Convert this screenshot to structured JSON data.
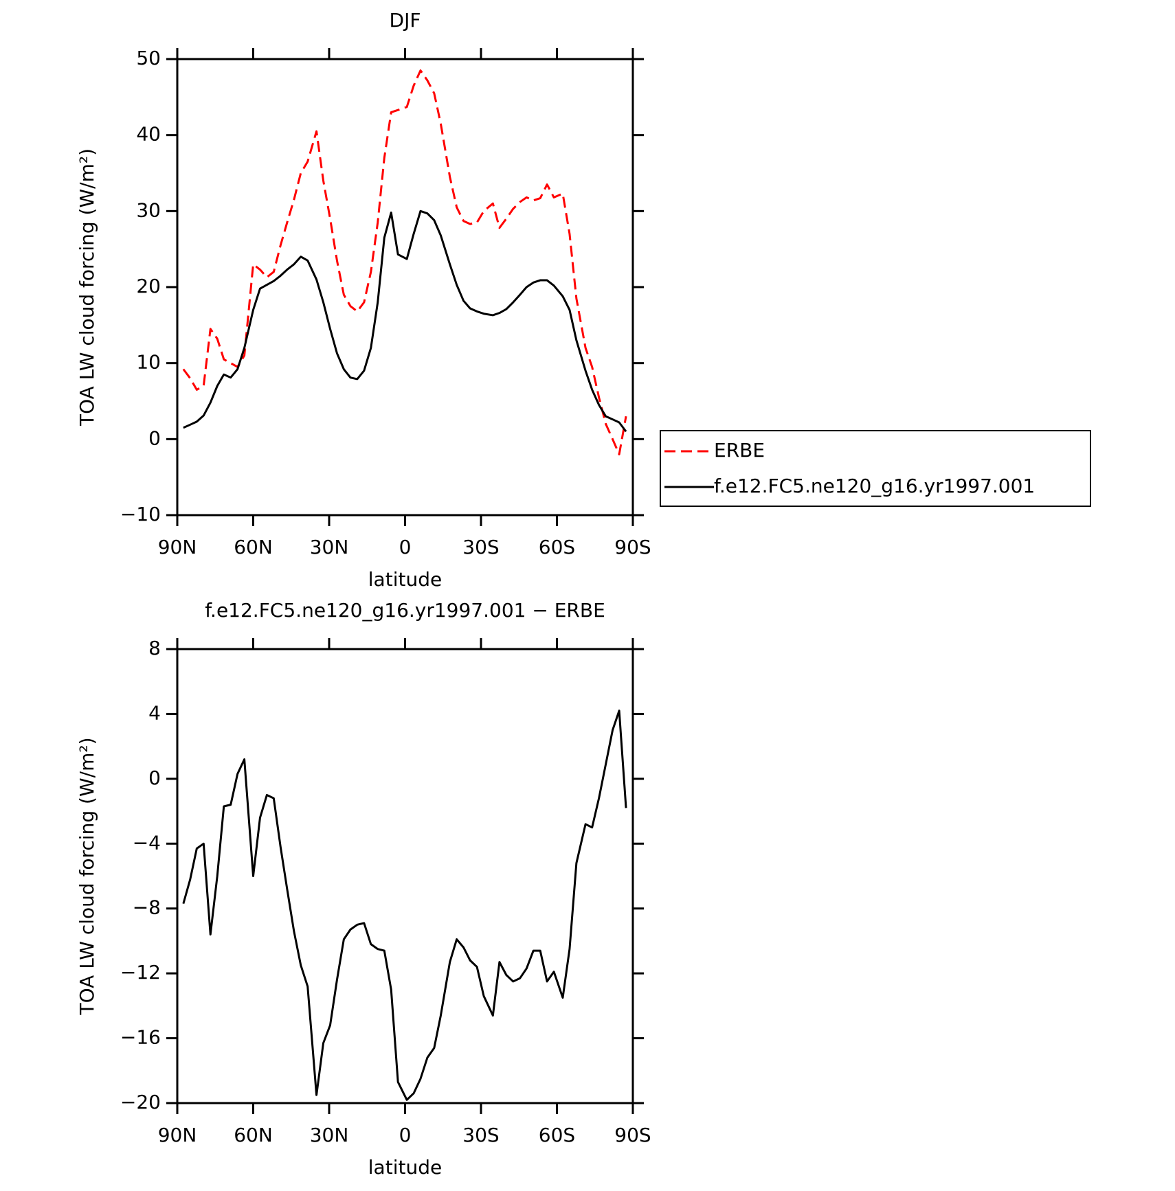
{
  "chart_data": [
    {
      "type": "line",
      "title": "DJF",
      "xlabel": "latitude",
      "ylabel": "TOA LW cloud forcing (W/m²)",
      "x": [
        87.6,
        84.9,
        82.3,
        79.6,
        76.9,
        74.2,
        71.6,
        68.9,
        66.2,
        63.5,
        60.0,
        57.3,
        54.6,
        51.9,
        49.2,
        46.6,
        43.9,
        41.2,
        38.5,
        35.0,
        32.3,
        29.6,
        26.9,
        24.2,
        21.6,
        18.9,
        16.2,
        13.5,
        10.8,
        8.2,
        5.5,
        2.8,
        -0.7,
        -3.4,
        -6.1,
        -8.8,
        -11.5,
        -14.1,
        -17.7,
        -20.4,
        -23.1,
        -25.7,
        -28.4,
        -31.1,
        -34.7,
        -37.3,
        -40.0,
        -42.7,
        -45.4,
        -48.0,
        -50.7,
        -53.4,
        -56.1,
        -58.8,
        -62.3,
        -65.0,
        -67.7,
        -71.3,
        -73.9,
        -76.6,
        -79.3,
        -82.0,
        -84.6,
        -87.3
      ],
      "series": [
        {
          "name": "ERBE",
          "color": "#ff0000",
          "line_style": "dashed",
          "values": [
            9.2,
            8.0,
            6.5,
            7.0,
            14.5,
            13.2,
            10.5,
            10.0,
            9.5,
            11.0,
            23.0,
            22.3,
            21.3,
            22.0,
            25.5,
            28.5,
            31.5,
            35.0,
            36.5,
            40.5,
            34.0,
            29.0,
            23.5,
            19.0,
            17.5,
            16.8,
            18.0,
            22.0,
            28.5,
            37.0,
            43.0,
            43.3,
            43.7,
            46.5,
            48.5,
            47.2,
            45.5,
            41.5,
            34.5,
            30.5,
            28.7,
            28.3,
            28.5,
            30.0,
            31.0,
            27.8,
            29.0,
            30.3,
            31.2,
            31.8,
            31.4,
            31.7,
            33.5,
            31.8,
            32.3,
            27.0,
            18.5,
            12.0,
            9.5,
            5.5,
            2.0,
            0.0,
            -2.0,
            3.0
          ]
        },
        {
          "name": "f.e12.FC5.ne120_g16.yr1997.001",
          "color": "#000000",
          "line_style": "solid",
          "values": [
            1.5,
            1.9,
            2.3,
            3.1,
            4.8,
            7.0,
            8.5,
            8.1,
            9.2,
            12.0,
            17.0,
            19.8,
            20.3,
            20.8,
            21.5,
            22.3,
            23.0,
            24.0,
            23.5,
            21.0,
            18.0,
            14.5,
            11.3,
            9.2,
            8.1,
            7.9,
            9.0,
            12.0,
            18.0,
            26.5,
            29.8,
            24.3,
            23.7,
            27.0,
            30.0,
            29.7,
            28.8,
            26.8,
            23.0,
            20.3,
            18.2,
            17.2,
            16.8,
            16.5,
            16.3,
            16.6,
            17.1,
            18.0,
            19.0,
            20.0,
            20.6,
            20.9,
            20.9,
            20.2,
            18.8,
            17.0,
            13.0,
            9.0,
            6.5,
            4.5,
            3.0,
            2.6,
            2.2,
            1.0
          ]
        }
      ],
      "xlim": [
        90,
        -90
      ],
      "xticks": [
        {
          "value": 90,
          "label": "90N"
        },
        {
          "value": 60,
          "label": "60N"
        },
        {
          "value": 30,
          "label": "30N"
        },
        0,
        {
          "value": -30,
          "label": "30S"
        },
        {
          "value": -60,
          "label": "60S"
        },
        {
          "value": -90,
          "label": "90S"
        }
      ],
      "ylim": [
        -10,
        50
      ],
      "yticks": [
        {
          "value": -10,
          "label": "−10"
        },
        0,
        10,
        20,
        30,
        40,
        50
      ],
      "legend": "right"
    },
    {
      "type": "line",
      "title": "f.e12.FC5.ne120_g16.yr1997.001 − ERBE",
      "xlabel": "latitude",
      "ylabel": "TOA LW cloud forcing (W/m²)",
      "x": [
        87.6,
        84.9,
        82.3,
        79.6,
        76.9,
        74.2,
        71.6,
        68.9,
        66.2,
        63.5,
        60.0,
        57.3,
        54.6,
        51.9,
        49.2,
        46.6,
        43.9,
        41.2,
        38.5,
        35.0,
        32.3,
        29.6,
        26.9,
        24.2,
        21.6,
        18.9,
        16.2,
        13.5,
        10.8,
        8.2,
        5.5,
        2.8,
        -0.7,
        -3.4,
        -6.1,
        -8.8,
        -11.5,
        -14.1,
        -17.7,
        -20.4,
        -23.1,
        -25.7,
        -28.4,
        -31.1,
        -34.7,
        -37.3,
        -40.0,
        -42.7,
        -45.4,
        -48.0,
        -50.7,
        -53.4,
        -56.1,
        -58.8,
        -62.3,
        -65.0,
        -67.7,
        -71.3,
        -73.9,
        -76.6,
        -79.3,
        -82.0,
        -84.6,
        -87.3
      ],
      "values": [
        -7.7,
        -6.2,
        -4.3,
        -4.0,
        -9.6,
        -6.0,
        -1.7,
        -1.6,
        0.3,
        1.2,
        -6.0,
        -2.4,
        -1.0,
        -1.2,
        -4.2,
        -6.8,
        -9.4,
        -11.5,
        -12.8,
        -19.5,
        -16.3,
        -15.2,
        -12.4,
        -9.9,
        -9.3,
        -9.0,
        -8.9,
        -10.2,
        -10.5,
        -10.6,
        -13.0,
        -18.7,
        -19.8,
        -19.4,
        -18.5,
        -17.2,
        -16.6,
        -14.6,
        -11.3,
        -9.9,
        -10.4,
        -11.2,
        -11.6,
        -13.4,
        -14.6,
        -11.3,
        -12.1,
        -12.5,
        -12.3,
        -11.7,
        -10.6,
        -10.6,
        -12.5,
        -11.9,
        -13.5,
        -10.5,
        -5.2,
        -2.8,
        -3.0,
        -1.2,
        0.9,
        3.0,
        4.2,
        -1.8
      ],
      "color": "#000000",
      "xlim": [
        90,
        -90
      ],
      "xticks": [
        {
          "value": 90,
          "label": "90N"
        },
        {
          "value": 60,
          "label": "60N"
        },
        {
          "value": 30,
          "label": "30N"
        },
        0,
        {
          "value": -30,
          "label": "30S"
        },
        {
          "value": -60,
          "label": "60S"
        },
        {
          "value": -90,
          "label": "90S"
        }
      ],
      "ylim": [
        -20,
        8
      ],
      "yticks": [
        {
          "value": -20,
          "label": "−20"
        },
        {
          "value": -16,
          "label": "−16"
        },
        {
          "value": -12,
          "label": "−12"
        },
        {
          "value": -8,
          "label": "−8"
        },
        {
          "value": -4,
          "label": "−4"
        },
        0,
        4,
        8
      ]
    }
  ]
}
